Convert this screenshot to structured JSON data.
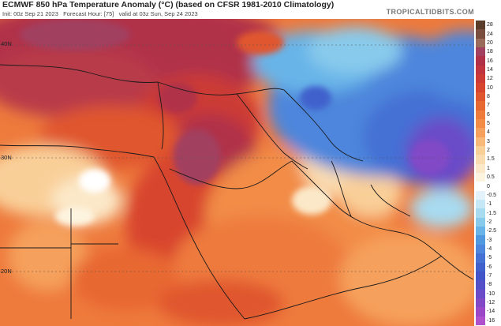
{
  "header": {
    "title": "ECMWF 850 hPa Temperature Anomaly (°C) (based on CFSR 1981-2010 Climatology)",
    "init_text": "Init: 00z Sep 21 2023",
    "forecast_hour_text": "Forecast Hour: [75]",
    "valid_text": "valid at 03z Sun, Sep 24 2023",
    "brand": "TROPICALTIDBITS.COM"
  },
  "map": {
    "lat_labels": [
      "40N",
      "30N",
      "20N"
    ],
    "colors": {
      "deep_red": "#b03048",
      "red": "#d8452f",
      "orange": "#ee7a3c",
      "light_orange": "#f5a05c",
      "pale": "#f8e6c4",
      "light_blue": "#a8daf0",
      "blue": "#4d86dc",
      "deep_blue": "#4255c8",
      "purple": "#6b4bc8",
      "borders": "#1a1a1a"
    }
  },
  "colorbar": {
    "labels": [
      "28",
      "24",
      "20",
      "18",
      "16",
      "14",
      "12",
      "10",
      "8",
      "7",
      "6",
      "5",
      "4",
      "3",
      "2",
      "1.5",
      "1",
      "0.5",
      "0",
      "-0.5",
      "-1",
      "-1.5",
      "-2",
      "-2.5",
      "-3",
      "-4",
      "-5",
      "-6",
      "-7",
      "-8",
      "-10",
      "-12",
      "-14",
      "-16"
    ],
    "colors": [
      "#5a3c2a",
      "#7a4e3e",
      "#9a6a5a",
      "#a24060",
      "#b03048",
      "#c03440",
      "#cc3a36",
      "#d8452f",
      "#e0562e",
      "#e86832",
      "#ee7a3c",
      "#f28c46",
      "#f5a05c",
      "#f7b878",
      "#f9cf98",
      "#fadcb0",
      "#fbe8c8",
      "#fdf4e0",
      "#ffffff",
      "#e4f3fb",
      "#c6e8f6",
      "#a8daf0",
      "#88caec",
      "#68b4e8",
      "#5098e0",
      "#4d86dc",
      "#4570d4",
      "#4060cc",
      "#4255c8",
      "#5450c8",
      "#6b4bc8",
      "#8248c6",
      "#9a48c8",
      "#b050cc"
    ]
  }
}
